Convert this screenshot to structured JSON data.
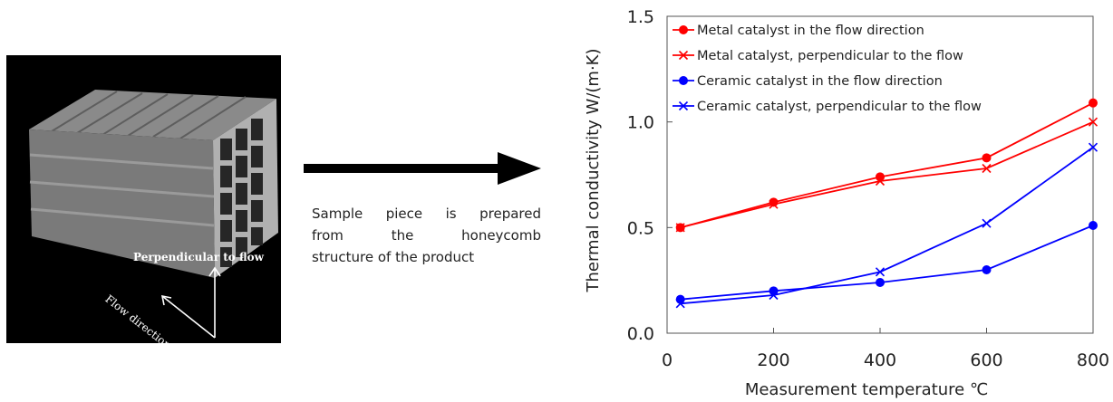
{
  "photo": {
    "label_perpendicular": "Perpendicular to flow",
    "label_flow": "Flow direction"
  },
  "caption": {
    "lines": [
      "Sample piece is prepared",
      "from the honeycomb",
      "structure of the product"
    ]
  },
  "chart_data": {
    "type": "line",
    "xlabel": "Measurement temperature ℃",
    "ylabel": "Thermal conductivity W/(m·K)",
    "xlim": [
      0,
      800
    ],
    "ylim": [
      0.0,
      1.5
    ],
    "x_ticks": [
      0,
      200,
      400,
      600,
      800
    ],
    "y_ticks": [
      0.0,
      0.5,
      1.0,
      1.5
    ],
    "y_tick_labels": [
      "0.0",
      "0.5",
      "1.0",
      "1.5"
    ],
    "grid": false,
    "legend_position": "top-left",
    "series": [
      {
        "name": "Metal catalyst in the flow direction",
        "color": "#ff0000",
        "marker": "circle",
        "x": [
          25,
          200,
          400,
          600,
          800
        ],
        "y": [
          0.5,
          0.62,
          0.74,
          0.83,
          1.09
        ]
      },
      {
        "name": "Metal catalyst, perpendicular to the flow",
        "color": "#ff0000",
        "marker": "x",
        "x": [
          25,
          200,
          400,
          600,
          800
        ],
        "y": [
          0.5,
          0.61,
          0.72,
          0.78,
          1.0
        ]
      },
      {
        "name": "Ceramic catalyst in the flow direction",
        "color": "#0000ff",
        "marker": "circle",
        "x": [
          25,
          200,
          400,
          600,
          800
        ],
        "y": [
          0.16,
          0.2,
          0.24,
          0.3,
          0.51
        ]
      },
      {
        "name": "Ceramic catalyst, perpendicular to the flow",
        "color": "#0000ff",
        "marker": "x",
        "x": [
          25,
          200,
          400,
          600,
          800
        ],
        "y": [
          0.14,
          0.18,
          0.29,
          0.52,
          0.88
        ]
      }
    ]
  }
}
